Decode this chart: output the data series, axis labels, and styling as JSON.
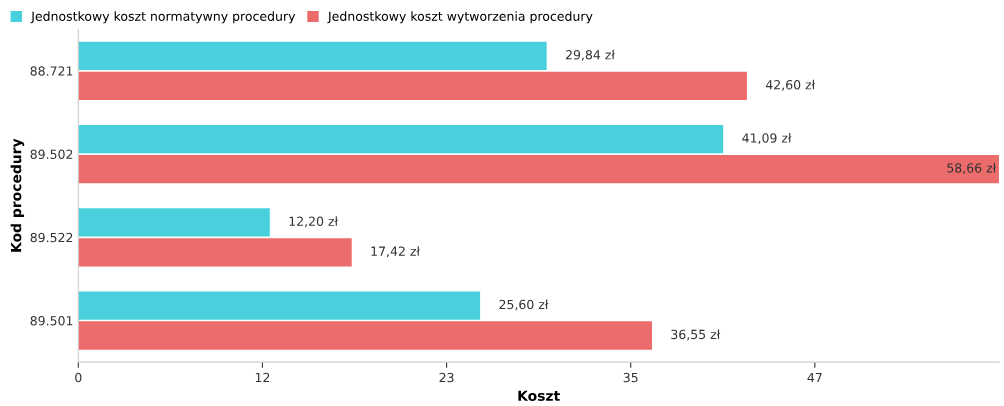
{
  "chart_data": {
    "type": "bar",
    "orientation": "horizontal",
    "xlabel": "Koszt",
    "ylabel": "Kod procedury",
    "categories": [
      "88.721",
      "89.502",
      "89.522",
      "89.501"
    ],
    "series": [
      {
        "name": "Jednostkowy koszt normatywny procedury",
        "color": "#48d1dc",
        "values": [
          29.84,
          41.09,
          12.2,
          25.6
        ],
        "value_labels": [
          "29,84 zł",
          "41,09 zł",
          "12,20 zł",
          "25,60 zł"
        ]
      },
      {
        "name": "Jednostkowy koszt wytworzenia procedury",
        "color": "#ec6b6b",
        "values": [
          42.6,
          58.66,
          17.42,
          36.55
        ],
        "value_labels": [
          "42,60 zł",
          "58,66 zł",
          "17,42 zł",
          "36,55 zł"
        ]
      }
    ],
    "xlim": [
      0,
      58.66
    ],
    "xticks": [
      0,
      {
        "value": 11.732,
        "label": "12"
      },
      {
        "value": 23.464,
        "label": "23"
      },
      {
        "value": 35.196,
        "label": "35"
      },
      {
        "value": 46.928,
        "label": "47"
      }
    ],
    "legend": "top left",
    "grid": false
  }
}
